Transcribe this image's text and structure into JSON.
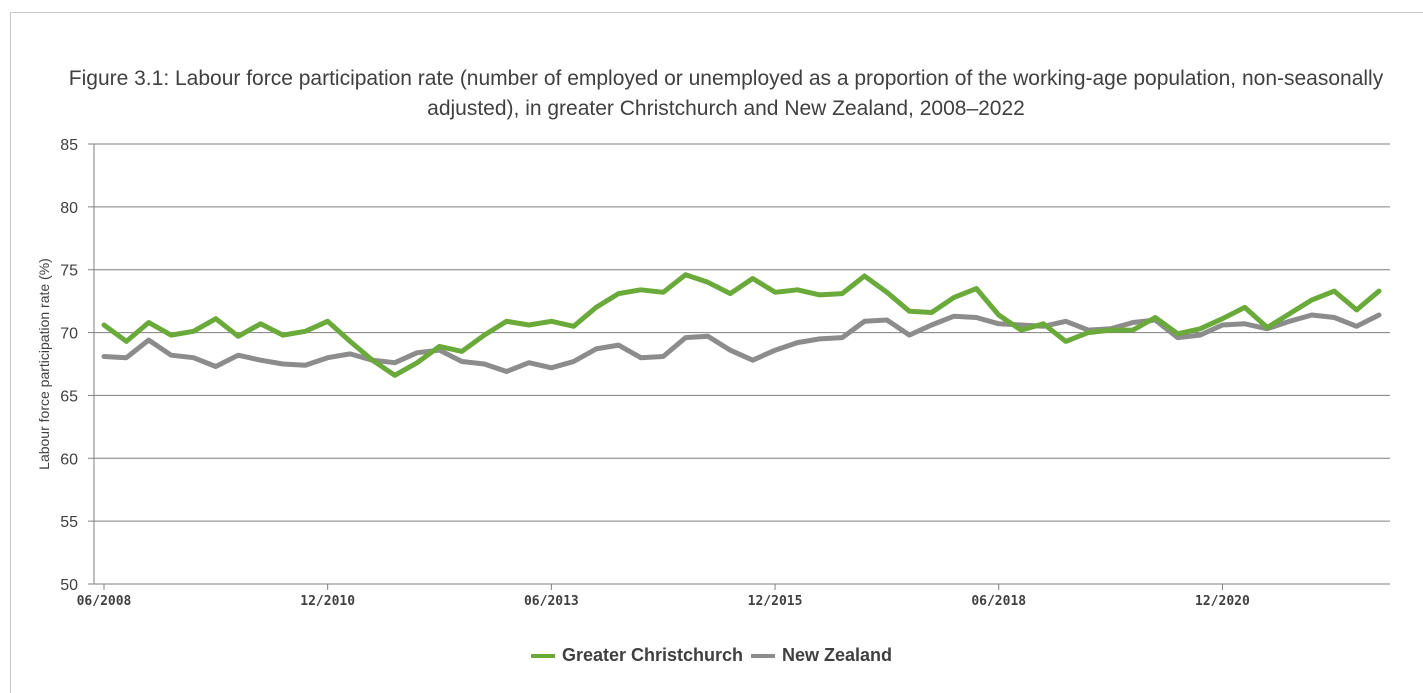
{
  "colors": {
    "greater_christchurch": "#6aaa3a",
    "new_zealand": "#8c8c8c",
    "grid": "#7f7f7f",
    "text": "#404040"
  },
  "chart_data": {
    "type": "line",
    "title": "Figure 3.1: Labour force participation rate (number of employed or unemployed as a proportion of the working-age population, non-seasonally adjusted), in greater Christchurch and New Zealand, 2008–2022",
    "xlabel": "",
    "ylabel": "Labour force participation rate (%)",
    "ylim": [
      50,
      85
    ],
    "yticks": [
      50,
      55,
      60,
      65,
      70,
      75,
      80,
      85
    ],
    "grid": true,
    "legend_position": "bottom",
    "x_ticks": [
      {
        "index": 0,
        "label": "06/2008"
      },
      {
        "index": 10,
        "label": "12/2010"
      },
      {
        "index": 20,
        "label": "06/2013"
      },
      {
        "index": 30,
        "label": "12/2015"
      },
      {
        "index": 40,
        "label": "06/2018"
      },
      {
        "index": 50,
        "label": "12/2020"
      }
    ],
    "x": [
      "06/2008",
      "09/2008",
      "12/2008",
      "03/2009",
      "06/2009",
      "09/2009",
      "12/2009",
      "03/2010",
      "06/2010",
      "09/2010",
      "12/2010",
      "03/2011",
      "06/2011",
      "09/2011",
      "12/2011",
      "03/2012",
      "06/2012",
      "09/2012",
      "12/2012",
      "03/2013",
      "06/2013",
      "09/2013",
      "12/2013",
      "03/2014",
      "06/2014",
      "09/2014",
      "12/2014",
      "03/2015",
      "06/2015",
      "09/2015",
      "12/2015",
      "03/2016",
      "06/2016",
      "09/2016",
      "12/2016",
      "03/2017",
      "06/2017",
      "09/2017",
      "12/2017",
      "03/2018",
      "06/2018",
      "09/2018",
      "12/2018",
      "03/2019",
      "06/2019",
      "09/2019",
      "12/2019",
      "03/2020",
      "06/2020",
      "09/2020",
      "12/2020",
      "03/2021",
      "06/2021",
      "09/2021",
      "12/2021",
      "03/2022",
      "06/2022",
      "09/2022"
    ],
    "series": [
      {
        "name": "Greater Christchurch",
        "values": [
          70.6,
          69.3,
          70.8,
          69.8,
          70.1,
          71.1,
          69.7,
          70.7,
          69.8,
          70.1,
          70.9,
          69.3,
          67.8,
          66.6,
          67.6,
          68.9,
          68.5,
          69.8,
          70.9,
          70.6,
          70.9,
          70.5,
          72.0,
          73.1,
          73.4,
          73.2,
          74.6,
          74.0,
          73.1,
          74.3,
          73.2,
          73.4,
          73.0,
          73.1,
          74.5,
          73.2,
          71.7,
          71.6,
          72.8,
          73.5,
          71.4,
          70.2,
          70.7,
          69.3,
          70.0,
          70.2,
          70.2,
          71.2,
          69.9,
          70.3,
          71.1,
          72.0,
          70.4,
          71.5,
          72.6,
          73.3,
          71.8,
          73.3
        ]
      },
      {
        "name": "New Zealand",
        "values": [
          68.1,
          68.0,
          69.4,
          68.2,
          68.0,
          67.3,
          68.2,
          67.8,
          67.5,
          67.4,
          68.0,
          68.3,
          67.8,
          67.6,
          68.4,
          68.6,
          67.7,
          67.5,
          66.9,
          67.6,
          67.2,
          67.7,
          68.7,
          69.0,
          68.0,
          68.1,
          69.6,
          69.7,
          68.6,
          67.8,
          68.6,
          69.2,
          69.5,
          69.6,
          70.9,
          71.0,
          69.8,
          70.6,
          71.3,
          71.2,
          70.7,
          70.6,
          70.5,
          70.9,
          70.2,
          70.3,
          70.8,
          71.0,
          69.6,
          69.8,
          70.6,
          70.7,
          70.3,
          70.9,
          71.4,
          71.2,
          70.5,
          71.4
        ]
      }
    ]
  }
}
